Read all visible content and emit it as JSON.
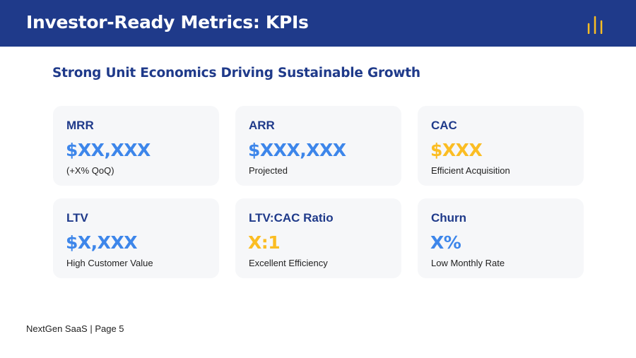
{
  "header": {
    "title": "Investor-Ready Metrics: KPIs"
  },
  "subtitle": "Strong Unit Economics Driving Sustainable Growth",
  "cards": [
    {
      "label": "MRR",
      "value": "$XX,XXX",
      "note": "(+X% QoQ)",
      "value_color": "#3d86ea"
    },
    {
      "label": "ARR",
      "value": "$XXX,XXX",
      "note": "Projected",
      "value_color": "#3d86ea"
    },
    {
      "label": "CAC",
      "value": "$XXX",
      "note": "Efficient Acquisition",
      "value_color": "#fbbd23"
    },
    {
      "label": "LTV",
      "value": "$X,XXX",
      "note": "High Customer Value",
      "value_color": "#3d86ea"
    },
    {
      "label": "LTV:CAC Ratio",
      "value": "X:1",
      "note": "Excellent Efficiency",
      "value_color": "#fbbd23"
    },
    {
      "label": "Churn",
      "value": "X%",
      "note": "Low Monthly Rate",
      "value_color": "#3d86ea"
    }
  ],
  "footer": "NextGen SaaS | Page 5"
}
